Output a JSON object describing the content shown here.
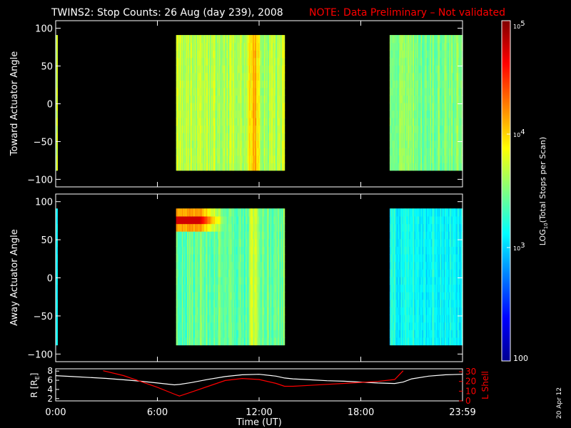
{
  "title": {
    "main": "TWINS2: Stop Counts: 26 Aug (day 239), 2008",
    "note": "NOTE: Data Preliminary – Not validated"
  },
  "colors": {
    "background": "#000000",
    "text": "#ffffff",
    "note": "#ff0000",
    "r_line": "#ffffff",
    "lshell_line": "#ff0000"
  },
  "colorbar": {
    "label_parts": {
      "pre": "LOG",
      "sub": "10",
      "post": "(Total Stops per Scan)"
    },
    "ticks": [
      {
        "value": 100,
        "label": "100"
      },
      {
        "value": 1000,
        "base": "10",
        "exp": "3"
      },
      {
        "value": 10000,
        "base": "10",
        "exp": "4"
      },
      {
        "value": 100000,
        "base": "10",
        "exp": "5"
      }
    ],
    "scale": "log",
    "range": [
      100,
      100000
    ],
    "colormap": "jet"
  },
  "date_stamp": "20 Apr 12",
  "chart_data": [
    {
      "type": "heatmap",
      "ylabel": "Toward Actuator Angle",
      "xlabel": "",
      "ylim": [
        -110,
        110
      ],
      "yticks": [
        100,
        50,
        0,
        -50,
        -100
      ],
      "xlim": [
        0,
        24
      ],
      "angle_range": [
        -88,
        91
      ],
      "blocks": [
        {
          "start": 0.0,
          "end": 0.1,
          "level": 0.55
        },
        {
          "start": 7.1,
          "end": 13.5,
          "level": 0.55
        },
        {
          "start": 19.7,
          "end": 24.0,
          "level": 0.5
        }
      ],
      "hotspots": [],
      "bright_band": {
        "center": 11.7,
        "half_width": 0.45,
        "boost": 0.15
      }
    },
    {
      "type": "heatmap",
      "ylabel": "Away Actuator Angle",
      "xlabel": "",
      "ylim": [
        -110,
        110
      ],
      "yticks": [
        100,
        50,
        0,
        -50,
        -100
      ],
      "xlim": [
        0,
        24
      ],
      "angle_range": [
        -88,
        91
      ],
      "blocks": [
        {
          "start": 0.0,
          "end": 0.1,
          "level": 0.42
        },
        {
          "start": 7.1,
          "end": 13.5,
          "level": 0.47
        },
        {
          "start": 19.7,
          "end": 24.0,
          "level": 0.38
        }
      ],
      "hotspots": [
        {
          "start": 7.1,
          "end": 8.5,
          "angle_lo": 70,
          "angle_hi": 84,
          "level": 0.92
        }
      ],
      "bright_band": {
        "center": 11.7,
        "half_width": 0.45,
        "boost": 0.12
      }
    },
    {
      "type": "line",
      "ylabel_left_parts": {
        "pre": "R [R",
        "sub": "E",
        "post": "]"
      },
      "ylabel_right": "L Shell",
      "xlabel": "Time (UT)",
      "xticks": [
        "0:00",
        "6:00",
        "12:00",
        "18:00",
        "23:59"
      ],
      "xtick_values": [
        0,
        6,
        12,
        18,
        24
      ],
      "ylim_left": [
        1.5,
        8.5
      ],
      "ylim_right": [
        0,
        33
      ],
      "yticks_left": [
        8,
        6,
        4,
        2
      ],
      "yticks_right": [
        30,
        20,
        10,
        0
      ],
      "series": [
        {
          "axis": "left",
          "x": [
            0,
            1,
            2,
            3,
            4,
            5,
            6,
            7,
            7.3,
            8,
            9,
            10,
            11,
            12,
            13,
            13.5,
            14,
            15,
            16,
            17,
            18,
            19,
            20,
            20.5,
            21,
            22,
            23,
            24
          ],
          "y": [
            7.0,
            6.8,
            6.6,
            6.4,
            6.1,
            5.8,
            5.4,
            5.0,
            5.1,
            5.5,
            6.2,
            6.8,
            7.2,
            7.3,
            6.9,
            6.5,
            6.3,
            6.1,
            5.9,
            5.8,
            5.6,
            5.4,
            5.3,
            5.6,
            6.3,
            6.9,
            7.2,
            7.3
          ]
        },
        {
          "axis": "right",
          "x": [
            2.8,
            4,
            5,
            6,
            7,
            7.3,
            8,
            9,
            10,
            11,
            12,
            13,
            13.5,
            14,
            15,
            16,
            17,
            18,
            19,
            20,
            20.5
          ],
          "y": [
            31,
            26,
            20,
            14,
            7,
            5,
            9,
            15,
            21,
            23,
            22,
            18,
            15,
            15,
            16,
            17,
            18,
            19,
            20,
            22,
            31
          ]
        }
      ]
    }
  ]
}
